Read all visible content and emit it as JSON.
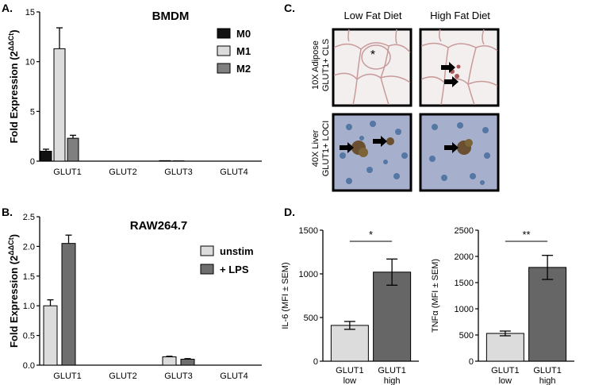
{
  "panels": {
    "a": "A.",
    "b": "B.",
    "c": "C.",
    "d": "D."
  },
  "colors": {
    "m0": "#111111",
    "m1": "#dcdcdc",
    "m2": "#7f7f7f",
    "unstim": "#dcdcdc",
    "lps": "#6e6e6e",
    "low": "#dcdcdc",
    "high": "#666666",
    "fat": "#f4efef",
    "fat_wall": "#c89a9a",
    "liver": "#a6afcc",
    "nuclei": "#5577a3",
    "brown": "#6a5030"
  },
  "chart_data": [
    {
      "id": "A",
      "type": "bar",
      "title": "BMDM",
      "ylabel": "Fold Expression (2^{ΔΔCt})",
      "ylabel_main": "Fold Expression (2",
      "ylabel_sup": "ΔΔCt",
      "ylabel_close": ")",
      "ylim": [
        0,
        15
      ],
      "yticks": [
        0,
        5,
        10,
        15
      ],
      "categories": [
        "GLUT1",
        "GLUT2",
        "GLUT3",
        "GLUT4"
      ],
      "series": [
        {
          "name": "M0",
          "values": [
            1.0,
            0.0,
            0.05,
            0.0
          ],
          "errors": [
            0.2,
            0,
            0,
            0
          ]
        },
        {
          "name": "M1",
          "values": [
            11.3,
            0.0,
            0.03,
            0.0
          ],
          "errors": [
            2.1,
            0,
            0,
            0
          ]
        },
        {
          "name": "M2",
          "values": [
            2.3,
            0.0,
            0.02,
            0.0
          ],
          "errors": [
            0.3,
            0,
            0,
            0
          ]
        }
      ],
      "legend": "top-right",
      "grid": false
    },
    {
      "id": "B",
      "type": "bar",
      "title": "RAW264.7",
      "ylabel": "Fold Expression (2^{ΔΔCt})",
      "ylabel_main": "Fold Expression (2",
      "ylabel_sup": "ΔΔCt",
      "ylabel_close": ")",
      "ylim": [
        0,
        2.5
      ],
      "yticks": [
        "0.0",
        "0.5",
        "1.0",
        "1.5",
        "2.0",
        "2.5"
      ],
      "categories": [
        "GLUT1",
        "GLUT2",
        "GLUT3",
        "GLUT4"
      ],
      "series": [
        {
          "name": "unstim",
          "values": [
            1.0,
            0.0,
            0.14,
            0.0
          ],
          "errors": [
            0.1,
            0,
            0.01,
            0
          ]
        },
        {
          "name": "+ LPS",
          "values": [
            2.05,
            0.0,
            0.1,
            0.0
          ],
          "errors": [
            0.14,
            0,
            0.01,
            0
          ]
        }
      ],
      "legend": "top-right",
      "grid": false
    },
    {
      "id": "D1",
      "type": "bar",
      "ylabel": "IL-6 (MFI ± SEM)",
      "ylim": [
        0,
        1500
      ],
      "yticks": [
        0,
        500,
        1000,
        1500
      ],
      "categories": [
        [
          "GLUT1",
          "low"
        ],
        [
          "GLUT1",
          "high"
        ]
      ],
      "values": [
        410,
        1020
      ],
      "errors": [
        45,
        150
      ],
      "significance": "*"
    },
    {
      "id": "D2",
      "type": "bar",
      "ylabel": "TNFα (MFI ± SEM)",
      "ylim": [
        0,
        2500
      ],
      "yticks": [
        0,
        500,
        1000,
        1500,
        2000,
        2500
      ],
      "categories": [
        [
          "GLUT1",
          "low"
        ],
        [
          "GLUT1",
          "high"
        ]
      ],
      "values": [
        530,
        1790
      ],
      "errors": [
        45,
        230
      ],
      "significance": "**"
    }
  ],
  "micrographs": {
    "columns": [
      "Low Fat Diet",
      "High Fat Diet"
    ],
    "rows": [
      {
        "line1": "10X Adipose",
        "line2": "GLUT1+ CLS"
      },
      {
        "line1": "40X Liver",
        "line2": "GLUT1+ LOCI"
      }
    ],
    "asterisk": "*"
  }
}
